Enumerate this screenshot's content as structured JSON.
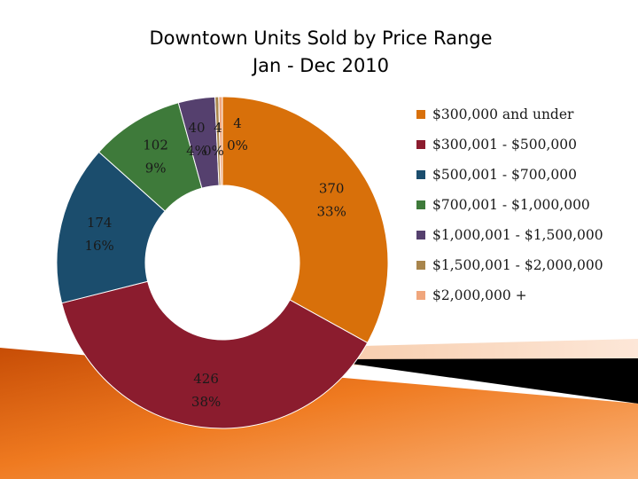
{
  "chart_data": {
    "type": "pie",
    "title": "Downtown Units Sold by Price Range",
    "subtitle": "Jan - Dec 2010",
    "legend_position": "right",
    "slices": [
      {
        "name": "$300,000 and under",
        "value": 370,
        "percent_label": "33%",
        "color": "#d8700a"
      },
      {
        "name": "$300,001 - $500,000",
        "value": 426,
        "percent_label": "38%",
        "color": "#8b1c2e"
      },
      {
        "name": "$500,001 - $700,000",
        "value": 174,
        "percent_label": "16%",
        "color": "#1b4d6d"
      },
      {
        "name": "$700,001 - $1,000,000",
        "value": 102,
        "percent_label": "9%",
        "color": "#3e7a3a"
      },
      {
        "name": "$1,000,001 - $1,500,000",
        "value": 40,
        "percent_label": "4%",
        "color": "#55406e"
      },
      {
        "name": "$1,500,001 - $2,000,000",
        "value": 4,
        "percent_label": "0%",
        "color": "#a8854c"
      },
      {
        "name": "$2,000,000 +",
        "value": 4,
        "percent_label": "0%",
        "color": "#f0a67c"
      }
    ]
  }
}
